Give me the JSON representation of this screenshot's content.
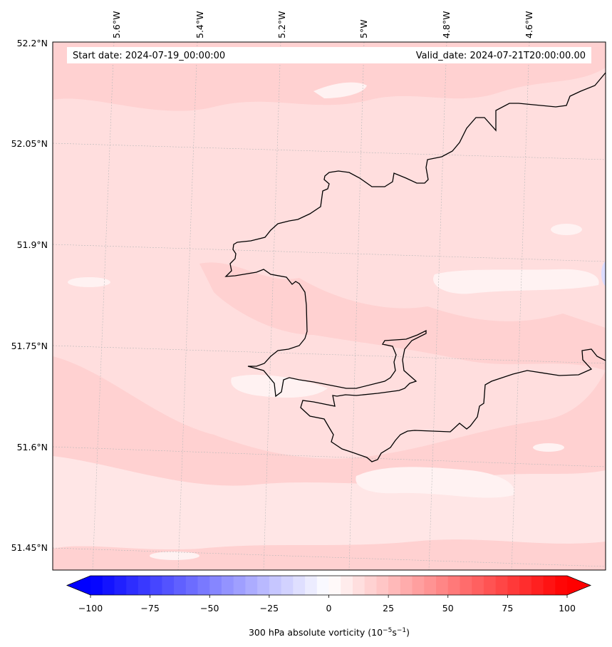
{
  "map": {
    "start_date_label": "Start date: 2024-07-19_00:00:00",
    "valid_date_label": "Valid_date: 2024-07-21T20:00:00.00",
    "lon_labels": [
      "5.6°W",
      "5.4°W",
      "5.2°W",
      "5°W",
      "4.8°W",
      "4.6°W"
    ],
    "lat_labels": [
      "52.2°N",
      "52.05°N",
      "51.9°N",
      "51.75°N",
      "51.6°N",
      "51.45°N"
    ],
    "field_base_color": "#ffdede",
    "coast_color": "#000000"
  },
  "colorbar": {
    "ticks": [
      "−100",
      "−75",
      "−50",
      "−25",
      "0",
      "25",
      "50",
      "75",
      "100"
    ],
    "label_main": "300 hPa absolute vorticity (10",
    "label_exp1": "−5",
    "label_mid": "s",
    "label_exp2": "−1",
    "label_end": ")",
    "low_color": "#0000ff",
    "mid_color": "#ffffff",
    "high_color": "#ff0000"
  }
}
